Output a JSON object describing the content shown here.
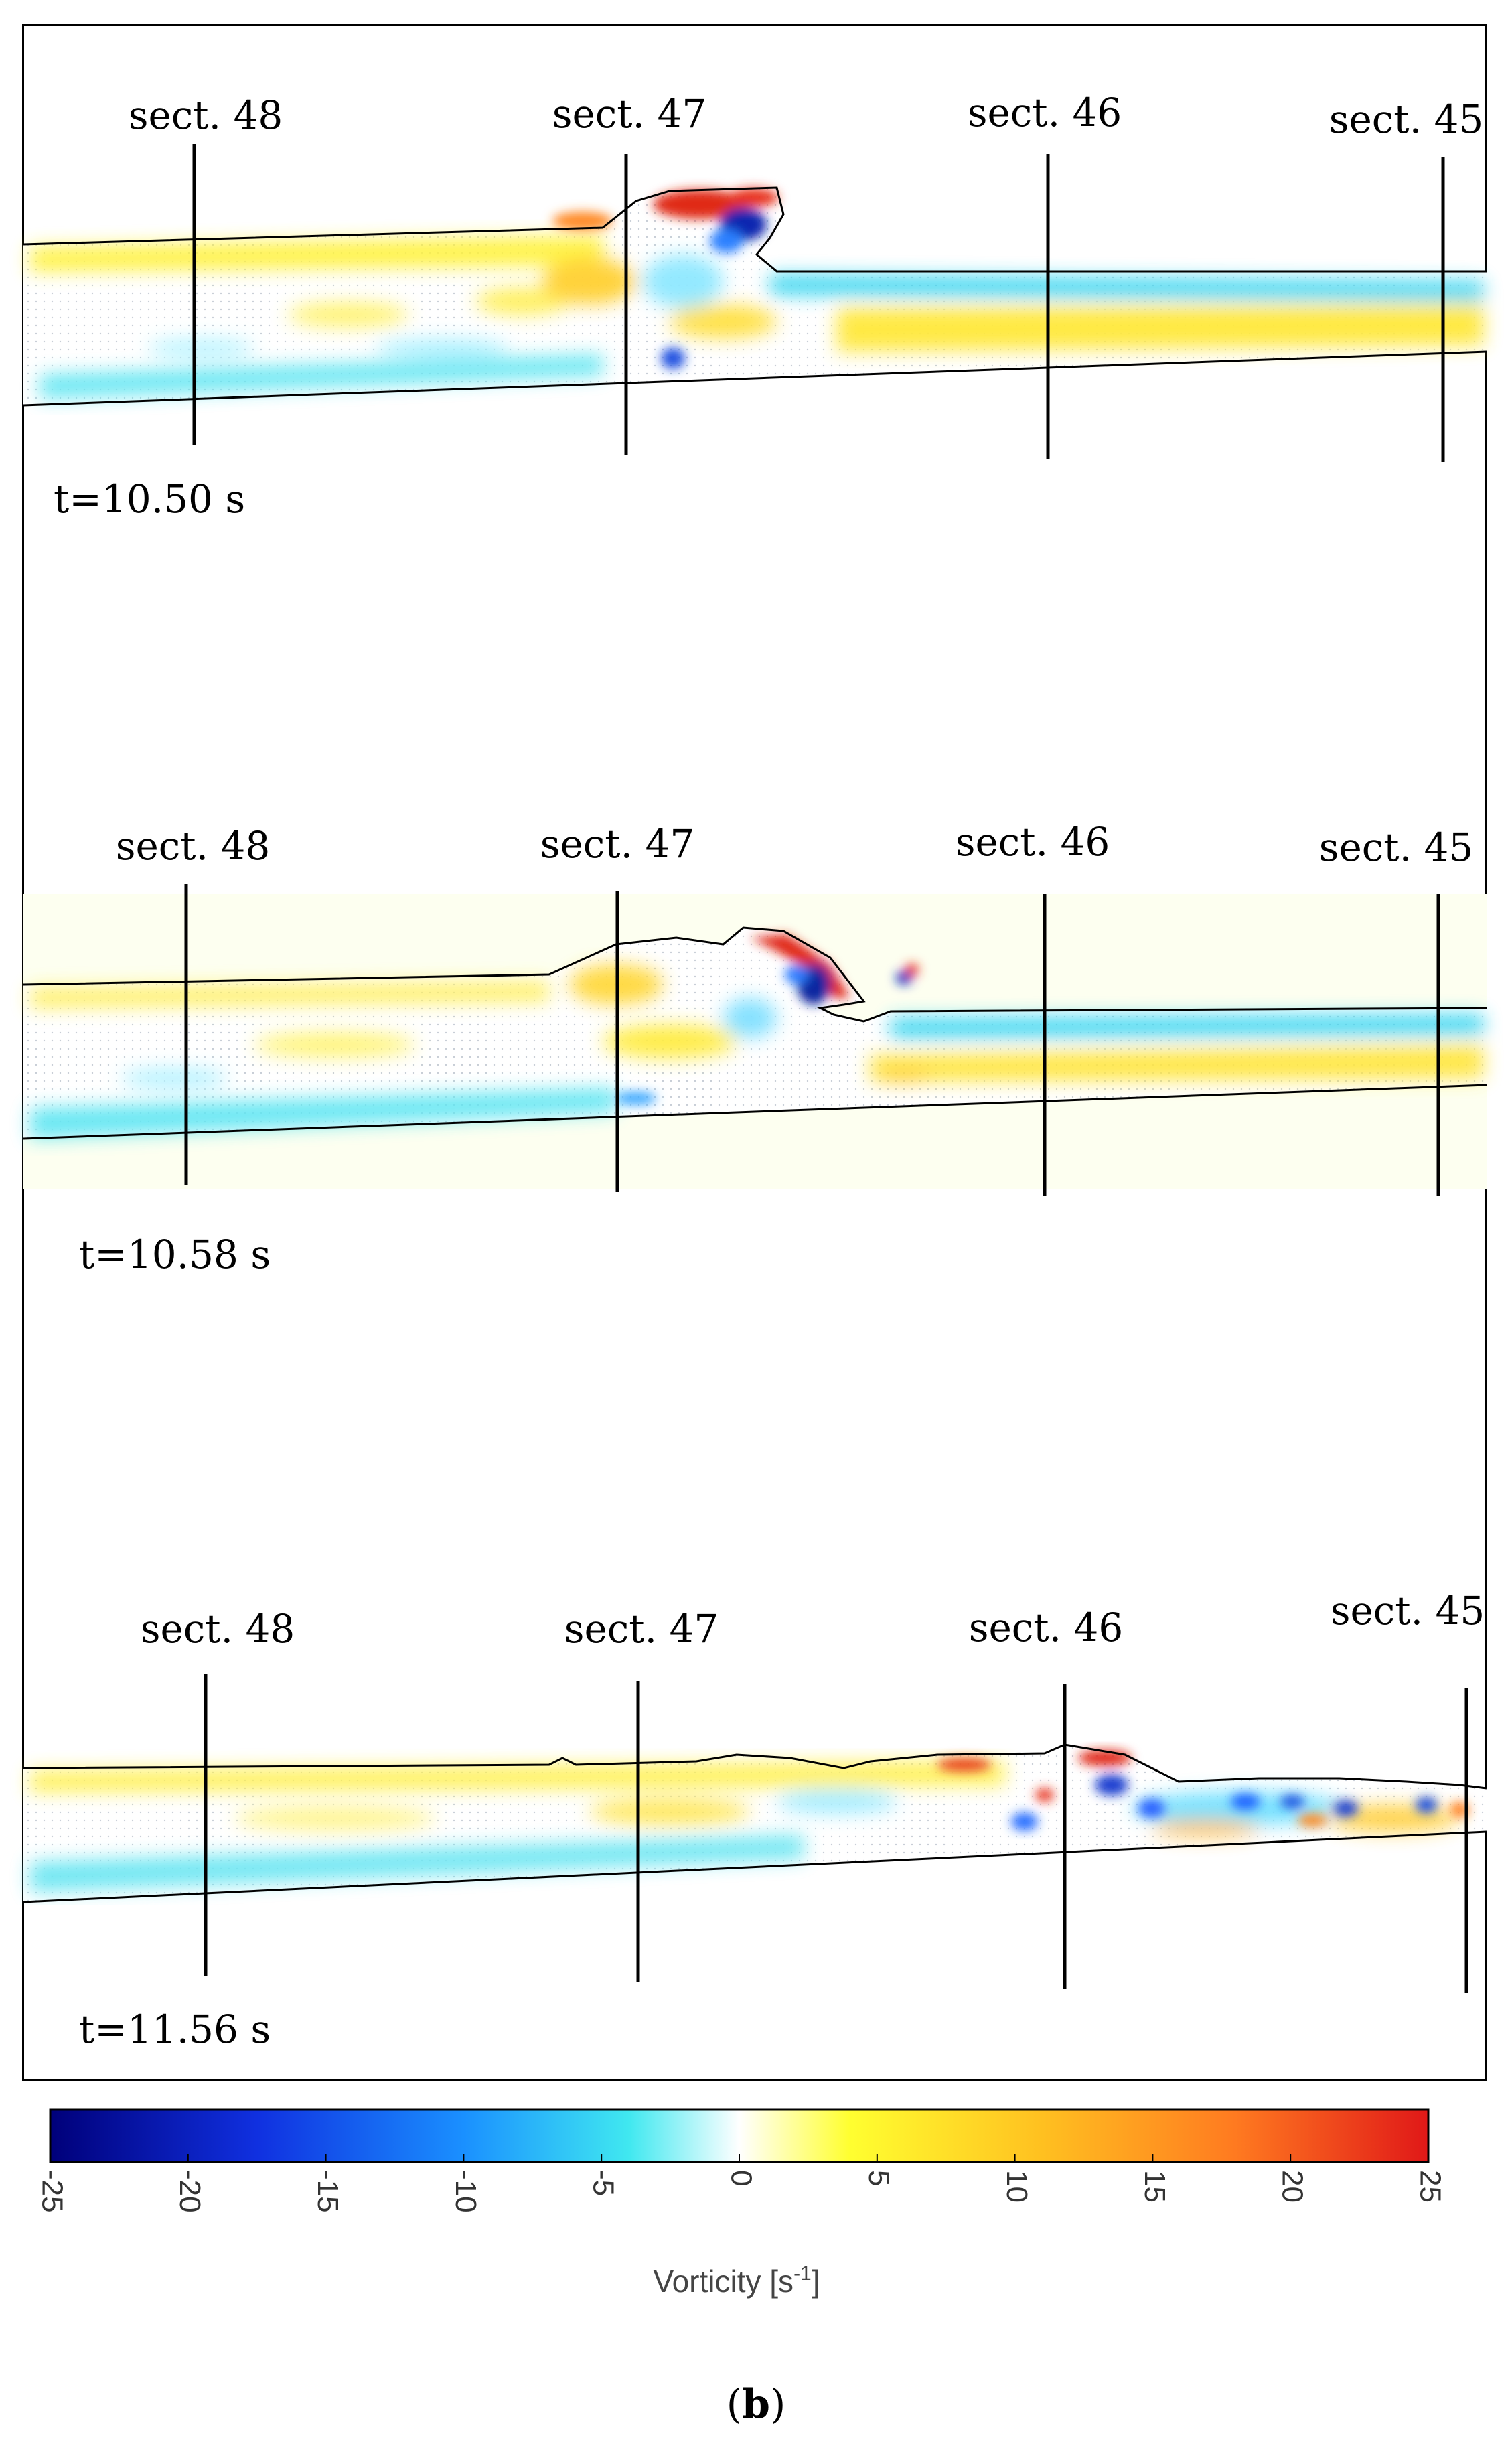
{
  "panels": [
    {
      "time_label": "t=10.50 s",
      "sections": [
        "sect. 48",
        "sect. 47",
        "sect. 46",
        "sect. 45"
      ]
    },
    {
      "time_label": "t=10.58 s",
      "sections": [
        "sect. 48",
        "sect. 47",
        "sect. 46",
        "sect. 45"
      ]
    },
    {
      "time_label": "t=11.56 s",
      "sections": [
        "sect. 48",
        "sect. 47",
        "sect. 46",
        "sect. 45"
      ]
    }
  ],
  "colorbar": {
    "ticks": [
      "-25",
      "-20",
      "-15",
      "-10",
      "-5",
      "0",
      "5",
      "10",
      "15",
      "20",
      "25"
    ],
    "label": "Vorticity [s",
    "label_exp": "-1",
    "label_end": "]",
    "colors": {
      "neg_max": "#00007a",
      "neg_mid": "#1a6cff",
      "neg_low": "#33e0f0",
      "zero": "#ffffff",
      "pos_low": "#ffff33",
      "pos_mid": "#ffa520",
      "pos_max": "#e0201a"
    }
  },
  "caption": "(b)"
}
